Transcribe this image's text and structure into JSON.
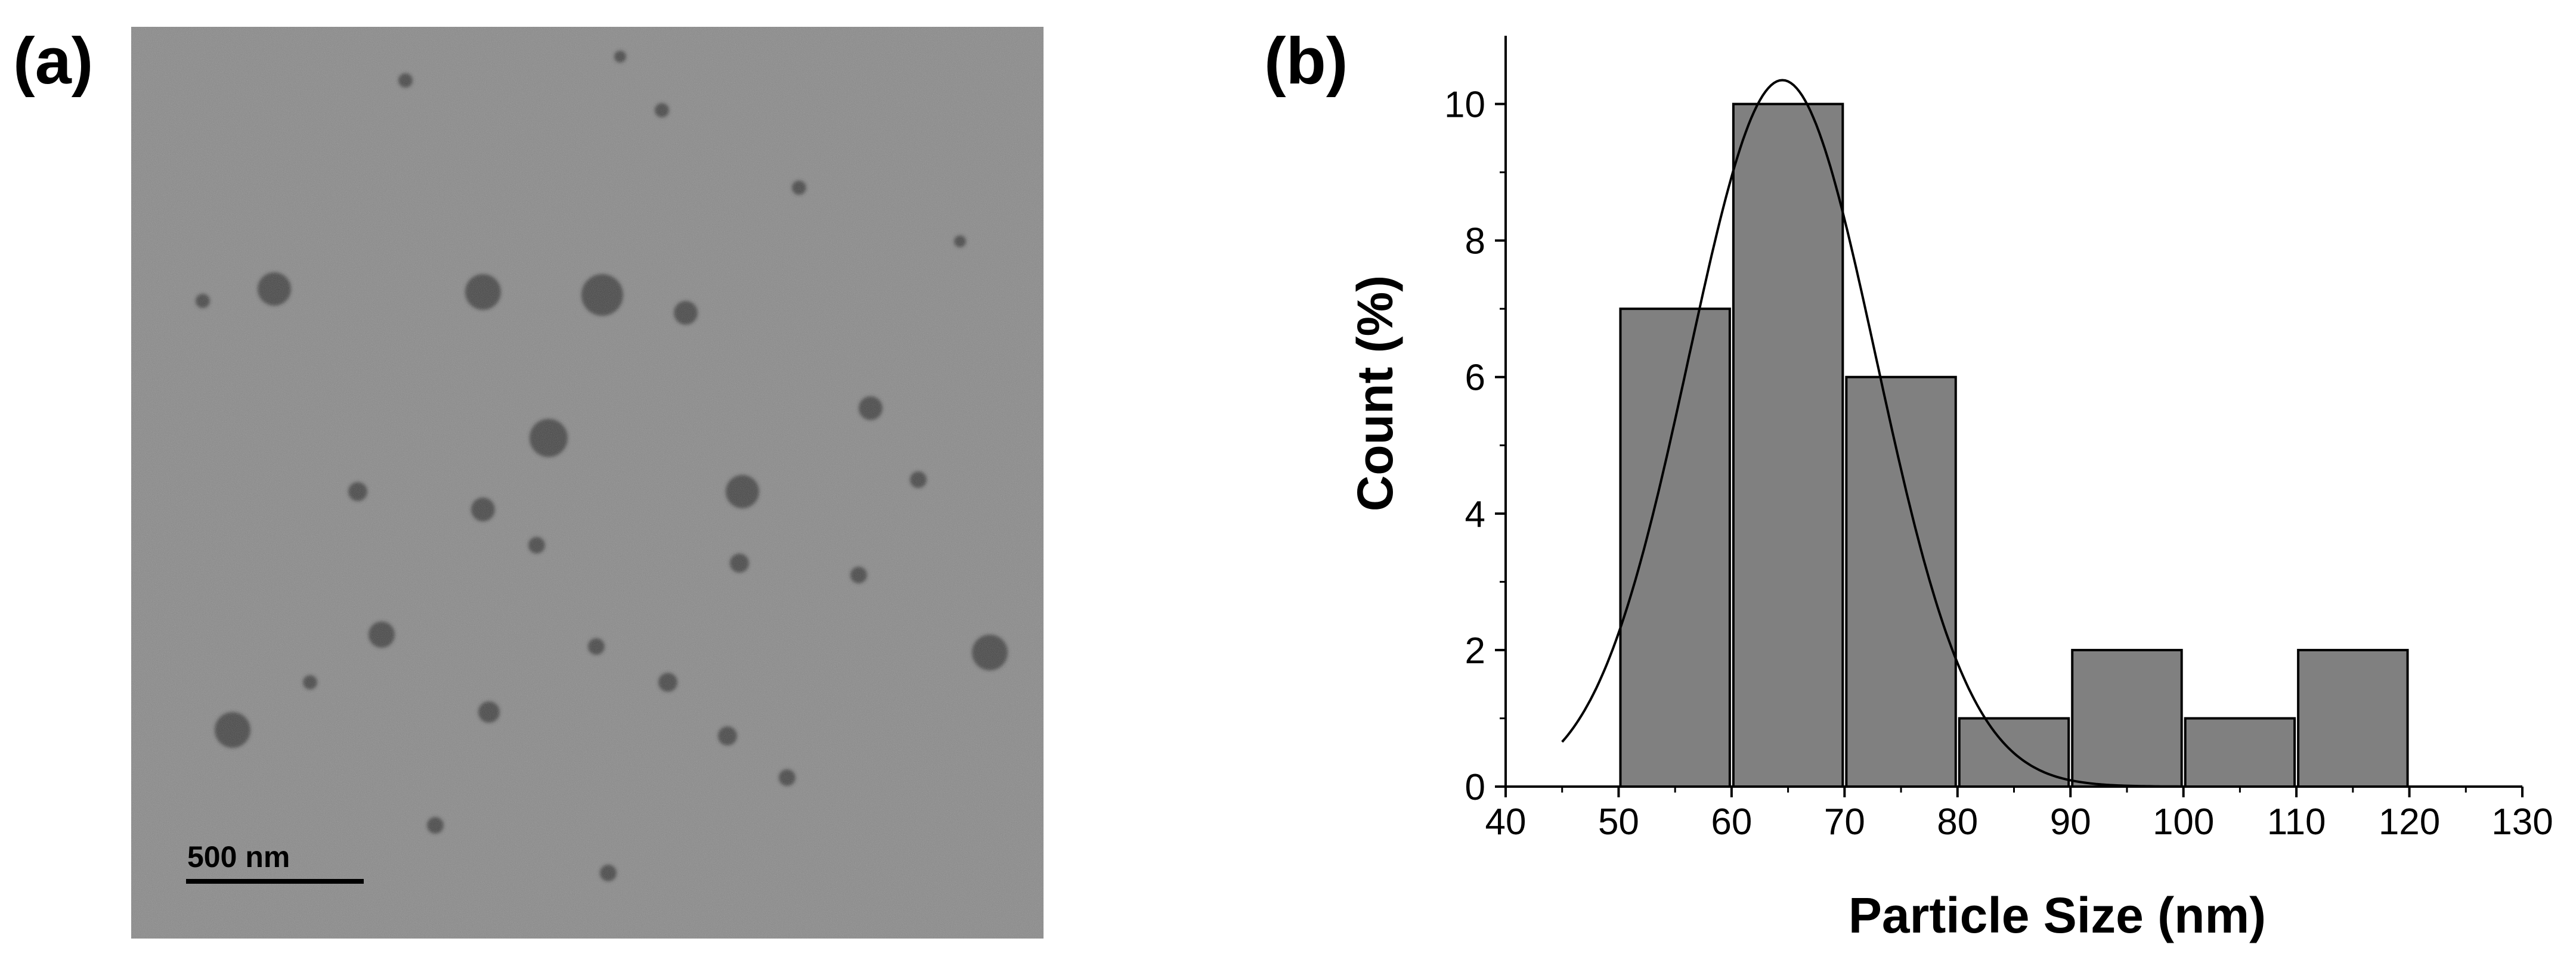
{
  "panels": {
    "a_label": "(a)",
    "b_label": "(b)"
  },
  "micrograph": {
    "scale_bar_label": "500 nm",
    "background_color": "#8a8a8a",
    "particle_color": "#3a3a3a"
  },
  "chart_data": {
    "type": "bar",
    "bins": [
      [
        50,
        60
      ],
      [
        60,
        70
      ],
      [
        70,
        80
      ],
      [
        80,
        90
      ],
      [
        90,
        100
      ],
      [
        100,
        110
      ],
      [
        110,
        120
      ]
    ],
    "values": [
      7,
      10,
      6,
      1,
      2,
      1,
      2
    ],
    "fit": {
      "type": "gaussian",
      "mean": 64.5,
      "sigma": 8.3,
      "amplitude": 10.35,
      "x_range": [
        45,
        100
      ]
    },
    "xlabel": "Particle Size (nm)",
    "ylabel": "Count (%)",
    "xlim": [
      40,
      130
    ],
    "ylim": [
      0,
      11
    ],
    "xticks": [
      40,
      50,
      60,
      70,
      80,
      90,
      100,
      110,
      120,
      130
    ],
    "yticks": [
      0,
      2,
      4,
      6,
      8,
      10
    ],
    "bar_color": "#808080",
    "edge_color": "#000000",
    "grid": false
  }
}
